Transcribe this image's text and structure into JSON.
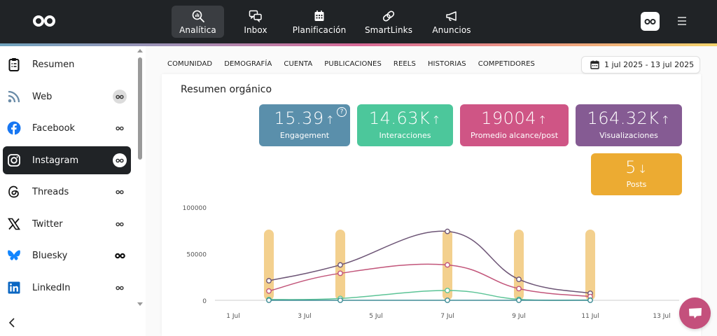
{
  "topbar": {
    "nav": [
      {
        "label": "Analítica",
        "icon": "analytics-search-icon",
        "active": true
      },
      {
        "label": "Inbox",
        "icon": "chat-bubbles-icon",
        "active": false
      },
      {
        "label": "Planificación",
        "icon": "calendar-icon",
        "active": false
      },
      {
        "label": "SmartLinks",
        "icon": "link-icon",
        "active": false
      },
      {
        "label": "Anuncios",
        "icon": "megaphone-icon",
        "active": false
      }
    ]
  },
  "sidebar": {
    "items": [
      {
        "label": "Resumen",
        "icon": "clipboard-icon",
        "badge": false
      },
      {
        "label": "Web",
        "icon": "rss-icon",
        "badge": "grey"
      },
      {
        "label": "Facebook",
        "icon": "facebook-icon",
        "badge": "plain"
      },
      {
        "label": "Instagram",
        "icon": "instagram-icon",
        "badge": "white",
        "active": true
      },
      {
        "label": "Threads",
        "icon": "threads-icon",
        "badge": "plain"
      },
      {
        "label": "Twitter",
        "icon": "x-twitter-icon",
        "badge": "plain"
      },
      {
        "label": "Bluesky",
        "icon": "bluesky-icon",
        "badge": "bold"
      },
      {
        "label": "LinkedIn",
        "icon": "linkedin-icon",
        "badge": "plain"
      }
    ]
  },
  "tabs": [
    "COMUNIDAD",
    "DEMOGRAFÍA",
    "CUENTA",
    "PUBLICACIONES",
    "REELS",
    "HISTORIAS",
    "COMPETIDORES"
  ],
  "date_range": "1 jul 2025 - 13 jul 2025",
  "section_title": "Resumen orgánico",
  "kpis": [
    {
      "value": "15.39",
      "trend": "↑",
      "label": "Engagement",
      "color": "#5a8fab",
      "help": "?"
    },
    {
      "value": "14.63K",
      "trend": "↑",
      "label": "Interacciones",
      "color": "#4cc79b"
    },
    {
      "value": "19004",
      "trend": "↑",
      "label": "Promedio alcance/post",
      "color": "#cf5585"
    },
    {
      "value": "164.32K",
      "trend": "↑",
      "label": "Visualizaciones",
      "color": "#855b93"
    },
    {
      "value": "5",
      "trend": "↓",
      "label": "Posts",
      "color": "#ecab32"
    }
  ],
  "chart_data": {
    "type": "line",
    "title": "",
    "xlabel": "",
    "ylabel": "",
    "ylim": [
      0,
      100000
    ],
    "y_ticks": [
      "0",
      "50000",
      "100000"
    ],
    "x_ticks": [
      "1 Jul",
      "3 Jul",
      "5 Jul",
      "7 Jul",
      "9 Jul",
      "11 Jul",
      "13 Jul"
    ],
    "categories": [
      "2 Jul",
      "4 Jul",
      "7 Jul",
      "9 Jul",
      "11 Jul"
    ],
    "series": [
      {
        "name": "Visualizaciones",
        "type": "line",
        "color": "#6d5576",
        "values": [
          21000,
          38000,
          74000,
          22500,
          7500
        ]
      },
      {
        "name": "Alcance",
        "type": "line",
        "color": "#c2557a",
        "values": [
          10000,
          29000,
          38000,
          12500,
          4000
        ]
      },
      {
        "name": "Interacciones",
        "type": "line",
        "color": "#5cc497",
        "values": [
          800,
          2000,
          10500,
          1000,
          300
        ]
      },
      {
        "name": "Engagement",
        "type": "line",
        "color": "#3e8c95",
        "values": [
          0,
          0,
          0,
          0,
          0
        ]
      },
      {
        "name": "Posts",
        "type": "bar",
        "color": "#f3d08e",
        "values": [
          1,
          1,
          1,
          1,
          1
        ]
      }
    ],
    "grid": false,
    "legend": "none"
  }
}
